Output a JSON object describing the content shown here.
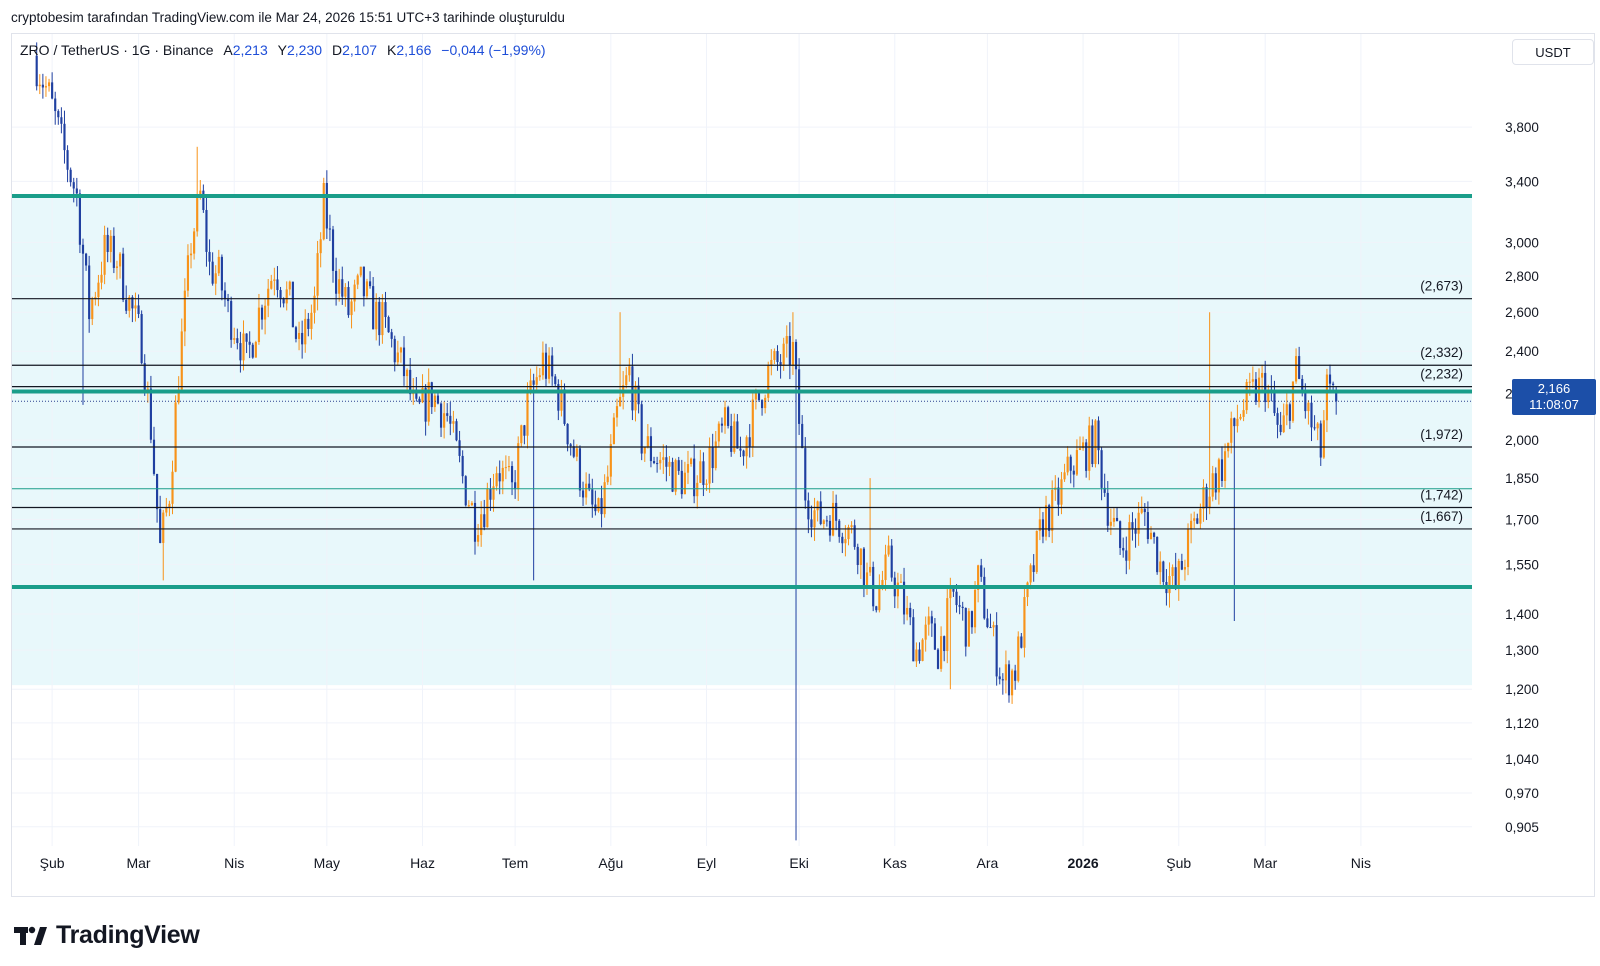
{
  "credit": "cryptobesim tarafından TradingView.com ile Mar 24, 2026 15:51 UTC+3 tarihinde oluşturuldu",
  "legend": {
    "symbol": "ZRO / TetherUS · 1G · Binance",
    "open_label": "A",
    "open": "2,213",
    "high_label": "Y",
    "high": "2,230",
    "low_label": "D",
    "low": "2,107",
    "close_label": "K",
    "close": "2,166",
    "change": "−0,044 (−1,99%)"
  },
  "unit": "USDT",
  "last_price": {
    "value": "2,166",
    "countdown": "11:08:07"
  },
  "brand": "TradingView",
  "colors": {
    "up": "#f7931a",
    "down": "#1f3fa0",
    "channel_line": "#1a9e8a",
    "channel_fill": "#e6f7fb",
    "level_line": "#131722",
    "tag": "#1c4fa8"
  },
  "chart_data": {
    "type": "candlestick",
    "yscale": "log",
    "ylim": [
      0.87,
      4.6
    ],
    "y_ticks": [
      {
        "value": 3.8,
        "label": "3,800"
      },
      {
        "value": 3.4,
        "label": "3,400"
      },
      {
        "value": 3.0,
        "label": "3,000"
      },
      {
        "value": 2.8,
        "label": "2,800"
      },
      {
        "value": 2.6,
        "label": "2,600"
      },
      {
        "value": 2.4,
        "label": "2,400"
      },
      {
        "value": 2.2,
        "label": "2,200"
      },
      {
        "value": 2.0,
        "label": "2,000"
      },
      {
        "value": 1.85,
        "label": "1,850"
      },
      {
        "value": 1.7,
        "label": "1,700"
      },
      {
        "value": 1.55,
        "label": "1,550"
      },
      {
        "value": 1.4,
        "label": "1,400"
      },
      {
        "value": 1.3,
        "label": "1,300"
      },
      {
        "value": 1.2,
        "label": "1,200"
      },
      {
        "value": 1.12,
        "label": "1,120"
      },
      {
        "value": 1.04,
        "label": "1,040"
      },
      {
        "value": 0.97,
        "label": "0,970"
      },
      {
        "value": 0.905,
        "label": "0,905"
      }
    ],
    "x_ticks": [
      {
        "day": 5,
        "label": "Şub",
        "bold": false
      },
      {
        "day": 33,
        "label": "Mar",
        "bold": false
      },
      {
        "day": 64,
        "label": "Nis",
        "bold": false
      },
      {
        "day": 94,
        "label": "May",
        "bold": false
      },
      {
        "day": 125,
        "label": "Haz",
        "bold": false
      },
      {
        "day": 155,
        "label": "Tem",
        "bold": false
      },
      {
        "day": 186,
        "label": "Ağu",
        "bold": false
      },
      {
        "day": 217,
        "label": "Eyl",
        "bold": false
      },
      {
        "day": 247,
        "label": "Eki",
        "bold": false
      },
      {
        "day": 278,
        "label": "Kas",
        "bold": false
      },
      {
        "day": 308,
        "label": "Ara",
        "bold": false
      },
      {
        "day": 339,
        "label": "2026",
        "bold": true
      },
      {
        "day": 370,
        "label": "Şub",
        "bold": false
      },
      {
        "day": 398,
        "label": "Mar",
        "bold": false
      },
      {
        "day": 429,
        "label": "Nis",
        "bold": false
      }
    ],
    "x_range_days": [
      -8,
      465
    ],
    "last_day": 421,
    "channel": {
      "top": 3.3,
      "mid": 2.21,
      "bottom": 1.48,
      "fill_bottom": 1.21
    },
    "levels": [
      {
        "value": 2.673,
        "label": "(2,673)"
      },
      {
        "value": 2.332,
        "label": "(2,332)"
      },
      {
        "value": 2.232,
        "label": "(2,232)"
      },
      {
        "value": 1.972,
        "label": "(1,972)"
      },
      {
        "value": 1.742,
        "label": "(1,742)"
      },
      {
        "value": 1.667,
        "label": "(1,667)"
      }
    ],
    "thin_green_level": 1.81,
    "last_close": 2.166,
    "anchors": [
      [
        0,
        4.4
      ],
      [
        5,
        4.05
      ],
      [
        10,
        3.6
      ],
      [
        14,
        3.3
      ],
      [
        18,
        2.6
      ],
      [
        23,
        2.95
      ],
      [
        27,
        2.9
      ],
      [
        31,
        2.65
      ],
      [
        35,
        2.45
      ],
      [
        38,
        2.05
      ],
      [
        41,
        1.6
      ],
      [
        44,
        1.8
      ],
      [
        47,
        2.3
      ],
      [
        51,
        3.0
      ],
      [
        54,
        3.3
      ],
      [
        57,
        2.85
      ],
      [
        60,
        2.8
      ],
      [
        63,
        2.6
      ],
      [
        66,
        2.5
      ],
      [
        69,
        2.35
      ],
      [
        73,
        2.6
      ],
      [
        78,
        2.85
      ],
      [
        83,
        2.65
      ],
      [
        86,
        2.4
      ],
      [
        91,
        2.65
      ],
      [
        94,
        3.25
      ],
      [
        98,
        2.8
      ],
      [
        102,
        2.6
      ],
      [
        106,
        2.75
      ],
      [
        110,
        2.6
      ],
      [
        113,
        2.55
      ],
      [
        117,
        2.4
      ],
      [
        120,
        2.3
      ],
      [
        124,
        2.1
      ],
      [
        129,
        2.2
      ],
      [
        134,
        2.1
      ],
      [
        139,
        1.85
      ],
      [
        143,
        1.7
      ],
      [
        146,
        1.75
      ],
      [
        150,
        1.9
      ],
      [
        155,
        1.8
      ],
      [
        160,
        2.15
      ],
      [
        165,
        2.35
      ],
      [
        170,
        2.2
      ],
      [
        175,
        1.95
      ],
      [
        180,
        1.75
      ],
      [
        183,
        1.7
      ],
      [
        186,
        1.85
      ],
      [
        189,
        2.1
      ],
      [
        193,
        2.3
      ],
      [
        197,
        2.0
      ],
      [
        200,
        1.95
      ],
      [
        205,
        1.9
      ],
      [
        209,
        1.85
      ],
      [
        213,
        1.85
      ],
      [
        218,
        1.9
      ],
      [
        224,
        2.05
      ],
      [
        229,
        1.95
      ],
      [
        233,
        2.1
      ],
      [
        238,
        2.3
      ],
      [
        242,
        2.35
      ],
      [
        246,
        2.4
      ],
      [
        250,
        1.8
      ],
      [
        254,
        1.7
      ],
      [
        258,
        1.72
      ],
      [
        263,
        1.68
      ],
      [
        267,
        1.62
      ],
      [
        270,
        1.5
      ],
      [
        273,
        1.45
      ],
      [
        277,
        1.55
      ],
      [
        281,
        1.45
      ],
      [
        286,
        1.3
      ],
      [
        290,
        1.35
      ],
      [
        293,
        1.3
      ],
      [
        298,
        1.45
      ],
      [
        303,
        1.35
      ],
      [
        306,
        1.5
      ],
      [
        311,
        1.32
      ],
      [
        314,
        1.22
      ],
      [
        318,
        1.25
      ],
      [
        322,
        1.45
      ],
      [
        327,
        1.7
      ],
      [
        331,
        1.75
      ],
      [
        336,
        1.9
      ],
      [
        340,
        1.95
      ],
      [
        344,
        2.0
      ],
      [
        348,
        1.75
      ],
      [
        352,
        1.6
      ],
      [
        355,
        1.65
      ],
      [
        360,
        1.72
      ],
      [
        365,
        1.55
      ],
      [
        370,
        1.48
      ],
      [
        375,
        1.65
      ],
      [
        380,
        1.8
      ],
      [
        385,
        1.9
      ],
      [
        390,
        2.1
      ],
      [
        395,
        2.2
      ],
      [
        399,
        2.25
      ],
      [
        404,
        2.0
      ],
      [
        409,
        2.3
      ],
      [
        413,
        2.1
      ],
      [
        417,
        1.95
      ],
      [
        419,
        2.21
      ],
      [
        421,
        2.166
      ]
    ],
    "spikes": [
      {
        "day": 246,
        "low": 0.88
      },
      {
        "day": 52,
        "high": 3.65
      },
      {
        "day": 15,
        "low": 2.15
      },
      {
        "day": 380,
        "high": 2.6
      },
      {
        "day": 388,
        "low": 1.38
      },
      {
        "day": 245,
        "high": 2.6
      },
      {
        "day": 189,
        "high": 2.6
      },
      {
        "day": 270,
        "high": 1.85
      },
      {
        "day": 296,
        "low": 1.2
      },
      {
        "day": 41,
        "low": 1.5
      },
      {
        "day": 161,
        "low": 1.5
      }
    ]
  }
}
